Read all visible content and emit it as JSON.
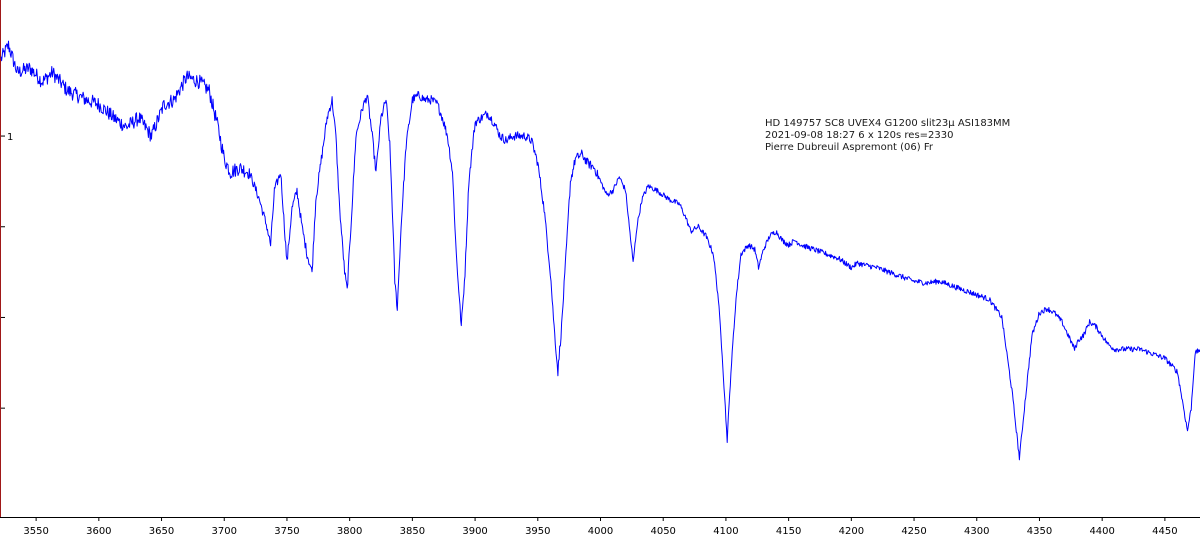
{
  "chart_data": {
    "type": "line",
    "title": "",
    "xlabel": "",
    "ylabel": "",
    "xlim": [
      3522,
      4478
    ],
    "ylim": [
      0.58,
      1.15
    ],
    "x_ticks": [
      3550,
      3600,
      3650,
      3700,
      3750,
      3800,
      3850,
      3900,
      3950,
      4000,
      4050,
      4100,
      4150,
      4200,
      4250,
      4300,
      4350,
      4400,
      4450
    ],
    "y_tick_values": [
      1.0,
      0.9,
      0.8,
      0.7
    ],
    "y_tick_labels": [
      "1",
      "",
      "",
      ""
    ],
    "grid": false,
    "annotation": [
      "HD 149757   SC8 UVEX4 G1200 slit23µ ASI183MM",
      "2021-09-08 18:27   6 x 120s   res=2330",
      "Pierre Dubreuil Aspremont (06) Fr"
    ],
    "series": [
      {
        "color": "#0000ff",
        "points": [
          [
            3522,
            1.085
          ],
          [
            3528,
            1.1
          ],
          [
            3535,
            1.07
          ],
          [
            3545,
            1.075
          ],
          [
            3555,
            1.06
          ],
          [
            3563,
            1.07
          ],
          [
            3575,
            1.05
          ],
          [
            3590,
            1.04
          ],
          [
            3600,
            1.035
          ],
          [
            3612,
            1.02
          ],
          [
            3622,
            1.01
          ],
          [
            3632,
            1.02
          ],
          [
            3642,
            1.0
          ],
          [
            3652,
            1.035
          ],
          [
            3660,
            1.04
          ],
          [
            3670,
            1.065
          ],
          [
            3680,
            1.06
          ],
          [
            3688,
            1.05
          ],
          [
            3695,
            1.01
          ],
          [
            3700,
            0.975
          ],
          [
            3705,
            0.96
          ],
          [
            3712,
            0.965
          ],
          [
            3720,
            0.96
          ],
          [
            3728,
            0.93
          ],
          [
            3734,
            0.9
          ],
          [
            3737,
            0.88
          ],
          [
            3740,
            0.94
          ],
          [
            3745,
            0.96
          ],
          [
            3748,
            0.9
          ],
          [
            3750,
            0.86
          ],
          [
            3754,
            0.92
          ],
          [
            3758,
            0.94
          ],
          [
            3762,
            0.9
          ],
          [
            3766,
            0.87
          ],
          [
            3770,
            0.85
          ],
          [
            3773,
            0.93
          ],
          [
            3777,
            0.97
          ],
          [
            3782,
            1.02
          ],
          [
            3786,
            1.04
          ],
          [
            3789,
            1.0
          ],
          [
            3792,
            0.92
          ],
          [
            3796,
            0.85
          ],
          [
            3798,
            0.83
          ],
          [
            3801,
            0.9
          ],
          [
            3805,
            1.0
          ],
          [
            3810,
            1.03
          ],
          [
            3814,
            1.045
          ],
          [
            3818,
            1.0
          ],
          [
            3821,
            0.96
          ],
          [
            3825,
            1.02
          ],
          [
            3829,
            1.04
          ],
          [
            3832,
            0.99
          ],
          [
            3834,
            0.92
          ],
          [
            3836,
            0.84
          ],
          [
            3838,
            0.81
          ],
          [
            3841,
            0.9
          ],
          [
            3845,
            0.99
          ],
          [
            3850,
            1.04
          ],
          [
            3855,
            1.045
          ],
          [
            3860,
            1.04
          ],
          [
            3865,
            1.04
          ],
          [
            3870,
            1.035
          ],
          [
            3874,
            1.02
          ],
          [
            3878,
            1.0
          ],
          [
            3882,
            0.96
          ],
          [
            3885,
            0.87
          ],
          [
            3889,
            0.79
          ],
          [
            3892,
            0.85
          ],
          [
            3895,
            0.95
          ],
          [
            3900,
            1.015
          ],
          [
            3905,
            1.02
          ],
          [
            3910,
            1.025
          ],
          [
            3915,
            1.015
          ],
          [
            3920,
            1.0
          ],
          [
            3925,
            0.995
          ],
          [
            3930,
            1.0
          ],
          [
            3935,
            1.0
          ],
          [
            3940,
            1.0
          ],
          [
            3945,
            0.995
          ],
          [
            3950,
            0.97
          ],
          [
            3955,
            0.92
          ],
          [
            3960,
            0.85
          ],
          [
            3963,
            0.79
          ],
          [
            3966,
            0.74
          ],
          [
            3969,
            0.79
          ],
          [
            3973,
            0.88
          ],
          [
            3976,
            0.95
          ],
          [
            3980,
            0.975
          ],
          [
            3985,
            0.98
          ],
          [
            3990,
            0.97
          ],
          [
            3995,
            0.965
          ],
          [
            4000,
            0.95
          ],
          [
            4005,
            0.935
          ],
          [
            4010,
            0.94
          ],
          [
            4015,
            0.955
          ],
          [
            4020,
            0.94
          ],
          [
            4023,
            0.9
          ],
          [
            4026,
            0.86
          ],
          [
            4029,
            0.9
          ],
          [
            4033,
            0.93
          ],
          [
            4038,
            0.945
          ],
          [
            4045,
            0.94
          ],
          [
            4055,
            0.93
          ],
          [
            4063,
            0.925
          ],
          [
            4068,
            0.91
          ],
          [
            4072,
            0.895
          ],
          [
            4078,
            0.9
          ],
          [
            4084,
            0.89
          ],
          [
            4090,
            0.87
          ],
          [
            4094,
            0.82
          ],
          [
            4097,
            0.76
          ],
          [
            4101,
            0.665
          ],
          [
            4104,
            0.74
          ],
          [
            4108,
            0.82
          ],
          [
            4112,
            0.87
          ],
          [
            4118,
            0.88
          ],
          [
            4123,
            0.875
          ],
          [
            4126,
            0.855
          ],
          [
            4130,
            0.875
          ],
          [
            4135,
            0.89
          ],
          [
            4140,
            0.895
          ],
          [
            4145,
            0.885
          ],
          [
            4150,
            0.88
          ],
          [
            4155,
            0.885
          ],
          [
            4160,
            0.88
          ],
          [
            4170,
            0.875
          ],
          [
            4180,
            0.87
          ],
          [
            4190,
            0.865
          ],
          [
            4200,
            0.855
          ],
          [
            4205,
            0.86
          ],
          [
            4210,
            0.858
          ],
          [
            4220,
            0.855
          ],
          [
            4230,
            0.85
          ],
          [
            4240,
            0.845
          ],
          [
            4250,
            0.84
          ],
          [
            4260,
            0.838
          ],
          [
            4270,
            0.84
          ],
          [
            4280,
            0.835
          ],
          [
            4290,
            0.83
          ],
          [
            4300,
            0.825
          ],
          [
            4310,
            0.82
          ],
          [
            4320,
            0.8
          ],
          [
            4328,
            0.72
          ],
          [
            4334,
            0.645
          ],
          [
            4338,
            0.7
          ],
          [
            4344,
            0.78
          ],
          [
            4350,
            0.805
          ],
          [
            4356,
            0.81
          ],
          [
            4362,
            0.805
          ],
          [
            4368,
            0.795
          ],
          [
            4373,
            0.78
          ],
          [
            4378,
            0.765
          ],
          [
            4381,
            0.775
          ],
          [
            4385,
            0.78
          ],
          [
            4390,
            0.795
          ],
          [
            4395,
            0.79
          ],
          [
            4400,
            0.78
          ],
          [
            4405,
            0.77
          ],
          [
            4410,
            0.765
          ],
          [
            4420,
            0.765
          ],
          [
            4430,
            0.765
          ],
          [
            4440,
            0.76
          ],
          [
            4450,
            0.755
          ],
          [
            4460,
            0.74
          ],
          [
            4465,
            0.7
          ],
          [
            4468,
            0.675
          ],
          [
            4471,
            0.7
          ],
          [
            4474,
            0.76
          ],
          [
            4478,
            0.765
          ]
        ]
      }
    ]
  }
}
